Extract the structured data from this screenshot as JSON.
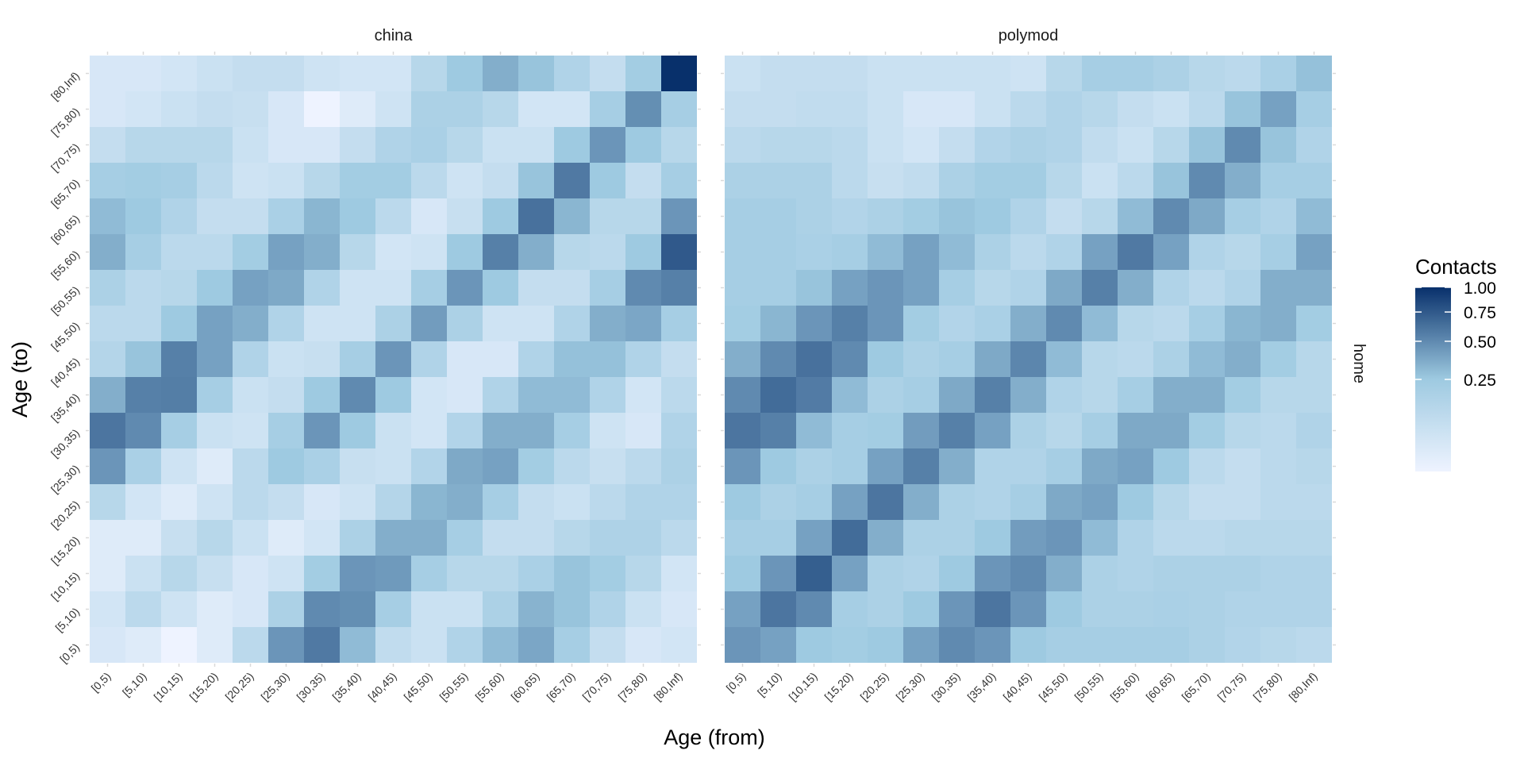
{
  "chart_data": {
    "type": "heatmap",
    "xlabel": "Age (from)",
    "ylabel": "Age (to)",
    "age_groups": [
      "[0,5)",
      "[5,10)",
      "[10,15)",
      "[15,20)",
      "[20,25)",
      "[25,30)",
      "[30,35)",
      "[35,40)",
      "[40,45)",
      "[45,50)",
      "[50,55)",
      "[55,60)",
      "[60,65)",
      "[65,70)",
      "[70,75)",
      "[75,80)",
      "[80,Inf)"
    ],
    "row_facet": "home",
    "facets": [
      {
        "name": "china",
        "values": [
          [
            0.02,
            0.01,
            0.0,
            0.01,
            0.1,
            0.45,
            0.58,
            0.3,
            0.08,
            0.05,
            0.15,
            0.3,
            0.38,
            0.2,
            0.07,
            0.02,
            0.03
          ],
          [
            0.03,
            0.1,
            0.04,
            0.01,
            0.02,
            0.17,
            0.5,
            0.48,
            0.2,
            0.05,
            0.05,
            0.17,
            0.33,
            0.27,
            0.15,
            0.05,
            0.02
          ],
          [
            0.01,
            0.05,
            0.12,
            0.06,
            0.02,
            0.04,
            0.22,
            0.45,
            0.43,
            0.2,
            0.12,
            0.12,
            0.18,
            0.27,
            0.22,
            0.12,
            0.03
          ],
          [
            0.01,
            0.01,
            0.06,
            0.12,
            0.05,
            0.01,
            0.03,
            0.17,
            0.35,
            0.35,
            0.2,
            0.07,
            0.07,
            0.12,
            0.16,
            0.16,
            0.1
          ],
          [
            0.12,
            0.03,
            0.01,
            0.04,
            0.1,
            0.07,
            0.02,
            0.04,
            0.13,
            0.32,
            0.35,
            0.2,
            0.07,
            0.05,
            0.1,
            0.15,
            0.15
          ],
          [
            0.45,
            0.18,
            0.04,
            0.01,
            0.1,
            0.25,
            0.18,
            0.06,
            0.05,
            0.14,
            0.37,
            0.4,
            0.22,
            0.1,
            0.06,
            0.1,
            0.17
          ],
          [
            0.6,
            0.5,
            0.2,
            0.05,
            0.04,
            0.2,
            0.45,
            0.25,
            0.05,
            0.03,
            0.14,
            0.35,
            0.35,
            0.2,
            0.04,
            0.02,
            0.15
          ],
          [
            0.35,
            0.55,
            0.56,
            0.2,
            0.05,
            0.07,
            0.25,
            0.5,
            0.25,
            0.03,
            0.02,
            0.15,
            0.3,
            0.3,
            0.15,
            0.03,
            0.1
          ],
          [
            0.13,
            0.27,
            0.55,
            0.4,
            0.15,
            0.05,
            0.06,
            0.2,
            0.45,
            0.15,
            0.02,
            0.02,
            0.15,
            0.28,
            0.28,
            0.15,
            0.07
          ],
          [
            0.1,
            0.1,
            0.25,
            0.4,
            0.35,
            0.15,
            0.04,
            0.04,
            0.17,
            0.42,
            0.17,
            0.04,
            0.04,
            0.15,
            0.35,
            0.38,
            0.2
          ],
          [
            0.17,
            0.1,
            0.12,
            0.25,
            0.4,
            0.37,
            0.15,
            0.04,
            0.04,
            0.2,
            0.45,
            0.25,
            0.07,
            0.07,
            0.2,
            0.5,
            0.55
          ],
          [
            0.35,
            0.2,
            0.1,
            0.1,
            0.22,
            0.4,
            0.35,
            0.12,
            0.03,
            0.04,
            0.25,
            0.55,
            0.35,
            0.12,
            0.1,
            0.25,
            0.75
          ],
          [
            0.3,
            0.25,
            0.15,
            0.07,
            0.07,
            0.18,
            0.32,
            0.25,
            0.1,
            0.02,
            0.06,
            0.25,
            0.62,
            0.32,
            0.12,
            0.12,
            0.45
          ],
          [
            0.2,
            0.22,
            0.2,
            0.1,
            0.04,
            0.05,
            0.12,
            0.22,
            0.22,
            0.1,
            0.04,
            0.07,
            0.27,
            0.58,
            0.25,
            0.07,
            0.2
          ],
          [
            0.07,
            0.12,
            0.12,
            0.12,
            0.05,
            0.02,
            0.02,
            0.07,
            0.15,
            0.18,
            0.12,
            0.05,
            0.05,
            0.25,
            0.45,
            0.25,
            0.12
          ],
          [
            0.02,
            0.03,
            0.05,
            0.07,
            0.06,
            0.02,
            0.0,
            0.01,
            0.04,
            0.17,
            0.17,
            0.12,
            0.03,
            0.03,
            0.2,
            0.48,
            0.2
          ],
          [
            0.02,
            0.02,
            0.03,
            0.05,
            0.07,
            0.07,
            0.04,
            0.03,
            0.03,
            0.12,
            0.25,
            0.35,
            0.27,
            0.15,
            0.07,
            0.22,
            1.0
          ]
        ]
      },
      {
        "name": "polymod",
        "values": [
          [
            0.45,
            0.4,
            0.25,
            0.22,
            0.25,
            0.4,
            0.5,
            0.45,
            0.25,
            0.2,
            0.2,
            0.2,
            0.2,
            0.17,
            0.14,
            0.12,
            0.1
          ],
          [
            0.4,
            0.6,
            0.5,
            0.2,
            0.17,
            0.25,
            0.45,
            0.6,
            0.45,
            0.25,
            0.17,
            0.17,
            0.18,
            0.17,
            0.15,
            0.15,
            0.15
          ],
          [
            0.25,
            0.45,
            0.72,
            0.4,
            0.17,
            0.15,
            0.25,
            0.45,
            0.5,
            0.35,
            0.17,
            0.15,
            0.17,
            0.17,
            0.17,
            0.15,
            0.15
          ],
          [
            0.2,
            0.2,
            0.4,
            0.65,
            0.35,
            0.17,
            0.17,
            0.25,
            0.42,
            0.45,
            0.3,
            0.15,
            0.1,
            0.1,
            0.12,
            0.12,
            0.12
          ],
          [
            0.25,
            0.17,
            0.2,
            0.4,
            0.6,
            0.35,
            0.17,
            0.15,
            0.2,
            0.37,
            0.4,
            0.25,
            0.12,
            0.07,
            0.07,
            0.1,
            0.1
          ],
          [
            0.45,
            0.25,
            0.17,
            0.2,
            0.4,
            0.55,
            0.35,
            0.15,
            0.15,
            0.2,
            0.37,
            0.4,
            0.25,
            0.1,
            0.07,
            0.1,
            0.12
          ],
          [
            0.6,
            0.55,
            0.3,
            0.2,
            0.22,
            0.42,
            0.55,
            0.4,
            0.17,
            0.12,
            0.2,
            0.37,
            0.37,
            0.22,
            0.12,
            0.1,
            0.15
          ],
          [
            0.5,
            0.65,
            0.57,
            0.3,
            0.17,
            0.2,
            0.37,
            0.55,
            0.35,
            0.15,
            0.12,
            0.2,
            0.35,
            0.35,
            0.22,
            0.12,
            0.12
          ],
          [
            0.35,
            0.5,
            0.62,
            0.5,
            0.25,
            0.17,
            0.2,
            0.37,
            0.52,
            0.3,
            0.12,
            0.1,
            0.17,
            0.3,
            0.35,
            0.22,
            0.12
          ],
          [
            0.22,
            0.32,
            0.45,
            0.55,
            0.45,
            0.22,
            0.14,
            0.18,
            0.35,
            0.5,
            0.3,
            0.12,
            0.1,
            0.2,
            0.32,
            0.35,
            0.22
          ],
          [
            0.2,
            0.2,
            0.27,
            0.4,
            0.45,
            0.4,
            0.2,
            0.12,
            0.15,
            0.37,
            0.55,
            0.35,
            0.15,
            0.1,
            0.15,
            0.35,
            0.35
          ],
          [
            0.2,
            0.2,
            0.18,
            0.2,
            0.3,
            0.4,
            0.3,
            0.17,
            0.1,
            0.15,
            0.4,
            0.58,
            0.4,
            0.15,
            0.12,
            0.2,
            0.4
          ],
          [
            0.2,
            0.2,
            0.17,
            0.14,
            0.17,
            0.22,
            0.27,
            0.25,
            0.15,
            0.07,
            0.12,
            0.3,
            0.5,
            0.37,
            0.2,
            0.15,
            0.3
          ],
          [
            0.17,
            0.17,
            0.17,
            0.1,
            0.06,
            0.08,
            0.17,
            0.22,
            0.22,
            0.12,
            0.05,
            0.1,
            0.27,
            0.5,
            0.35,
            0.2,
            0.2
          ],
          [
            0.1,
            0.12,
            0.12,
            0.1,
            0.05,
            0.03,
            0.07,
            0.14,
            0.17,
            0.15,
            0.08,
            0.05,
            0.12,
            0.27,
            0.5,
            0.27,
            0.15
          ],
          [
            0.07,
            0.07,
            0.08,
            0.08,
            0.05,
            0.02,
            0.02,
            0.05,
            0.1,
            0.15,
            0.12,
            0.07,
            0.05,
            0.1,
            0.27,
            0.4,
            0.2
          ],
          [
            0.05,
            0.07,
            0.07,
            0.07,
            0.05,
            0.05,
            0.05,
            0.05,
            0.04,
            0.12,
            0.2,
            0.2,
            0.17,
            0.12,
            0.1,
            0.18,
            0.28
          ]
        ]
      }
    ],
    "legend": {
      "title": "Contacts",
      "breaks": [
        1.0,
        0.75,
        0.5,
        0.25
      ],
      "break_labels": [
        "1.00",
        "0.75",
        "0.50",
        "0.25"
      ],
      "scale": "sqrt",
      "limits": [
        0,
        1
      ],
      "low_color": "#eef3ff",
      "mid_color": "#9ecae1",
      "high_color": "#08306b",
      "placement": "right"
    },
    "grid": false
  }
}
